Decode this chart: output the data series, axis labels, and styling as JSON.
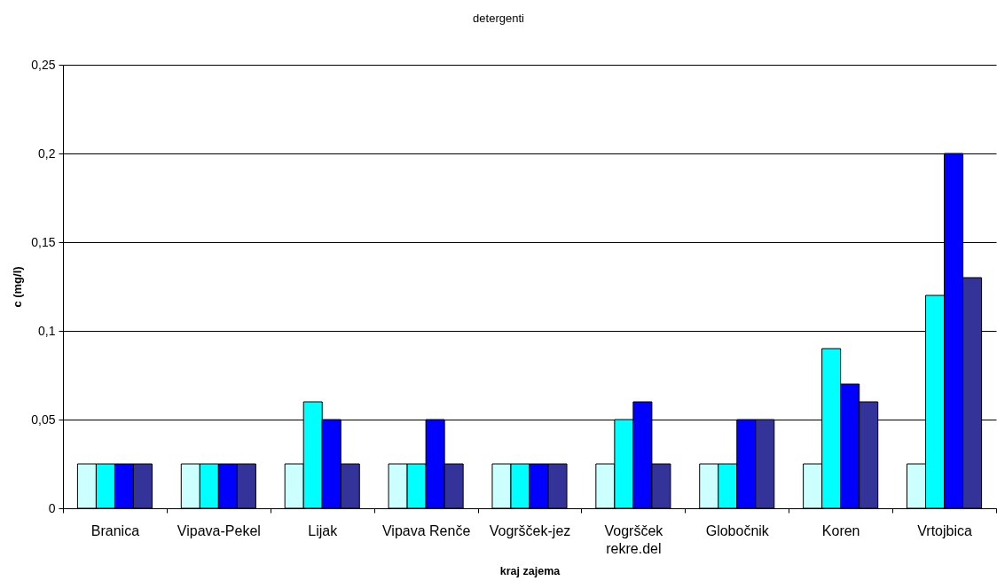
{
  "chart_data": {
    "type": "bar",
    "title": "detergenti",
    "xlabel": "kraj zajema",
    "ylabel": "c (mg/l)",
    "categories": [
      "Branica",
      "Vipava-Pekel",
      "Lijak",
      "Vipava Renče",
      "Vogršček-jez",
      "Vogršček rekre.del",
      "Globočnik",
      "Koren",
      "Vrtojbica"
    ],
    "series": [
      {
        "color": "#ccffff",
        "values": [
          0.025,
          0.025,
          0.025,
          0.025,
          0.025,
          0.025,
          0.025,
          0.025,
          0.025
        ]
      },
      {
        "color": "#00ffff",
        "values": [
          0.025,
          0.025,
          0.06,
          0.025,
          0.025,
          0.05,
          0.025,
          0.09,
          0.12
        ]
      },
      {
        "color": "#0000ff",
        "values": [
          0.025,
          0.025,
          0.05,
          0.05,
          0.025,
          0.06,
          0.05,
          0.07,
          0.2
        ]
      },
      {
        "color": "#333399",
        "values": [
          0.025,
          0.025,
          0.025,
          0.025,
          0.025,
          0.025,
          0.05,
          0.06,
          0.13
        ]
      }
    ],
    "ylim": [
      0,
      0.25
    ],
    "yticks": [
      0,
      {
        "value": 0.05,
        "label": "0,05"
      },
      {
        "value": 0.1,
        "label": "0,1"
      },
      {
        "value": 0.15,
        "label": "0,15"
      },
      {
        "value": 0.2,
        "label": "0,2"
      },
      {
        "value": 0.25,
        "label": "0,25"
      }
    ],
    "grid": "y"
  }
}
